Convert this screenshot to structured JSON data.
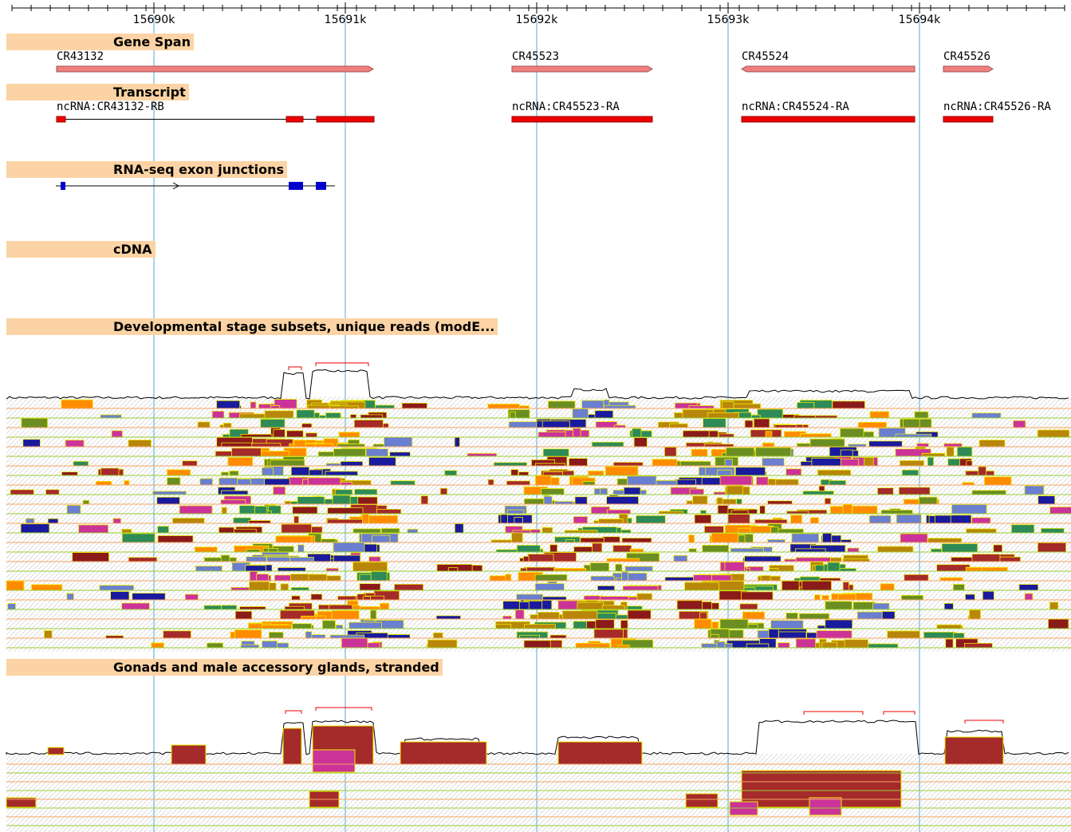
{
  "ruler": {
    "labels": [
      "15690k",
      "15691k",
      "15692k",
      "15693k",
      "15694k"
    ]
  },
  "tracks": [
    {
      "title": "Gene Span",
      "features": [
        {
          "label": "CR43132"
        },
        {
          "label": "CR45523"
        },
        {
          "label": "CR45524"
        },
        {
          "label": "CR45526"
        }
      ]
    },
    {
      "title": "Transcript",
      "features": [
        {
          "label": "ncRNA:CR43132-RB"
        },
        {
          "label": "ncRNA:CR45523-RA"
        },
        {
          "label": "ncRNA:CR45524-RA"
        },
        {
          "label": "ncRNA:CR45526-RA"
        }
      ]
    },
    {
      "title": "RNA-seq exon junctions"
    },
    {
      "title": "cDNA"
    },
    {
      "title": "Developmental stage subsets, unique reads (modE..."
    },
    {
      "title": "Gonads and male accessory glands, stranded"
    }
  ]
}
